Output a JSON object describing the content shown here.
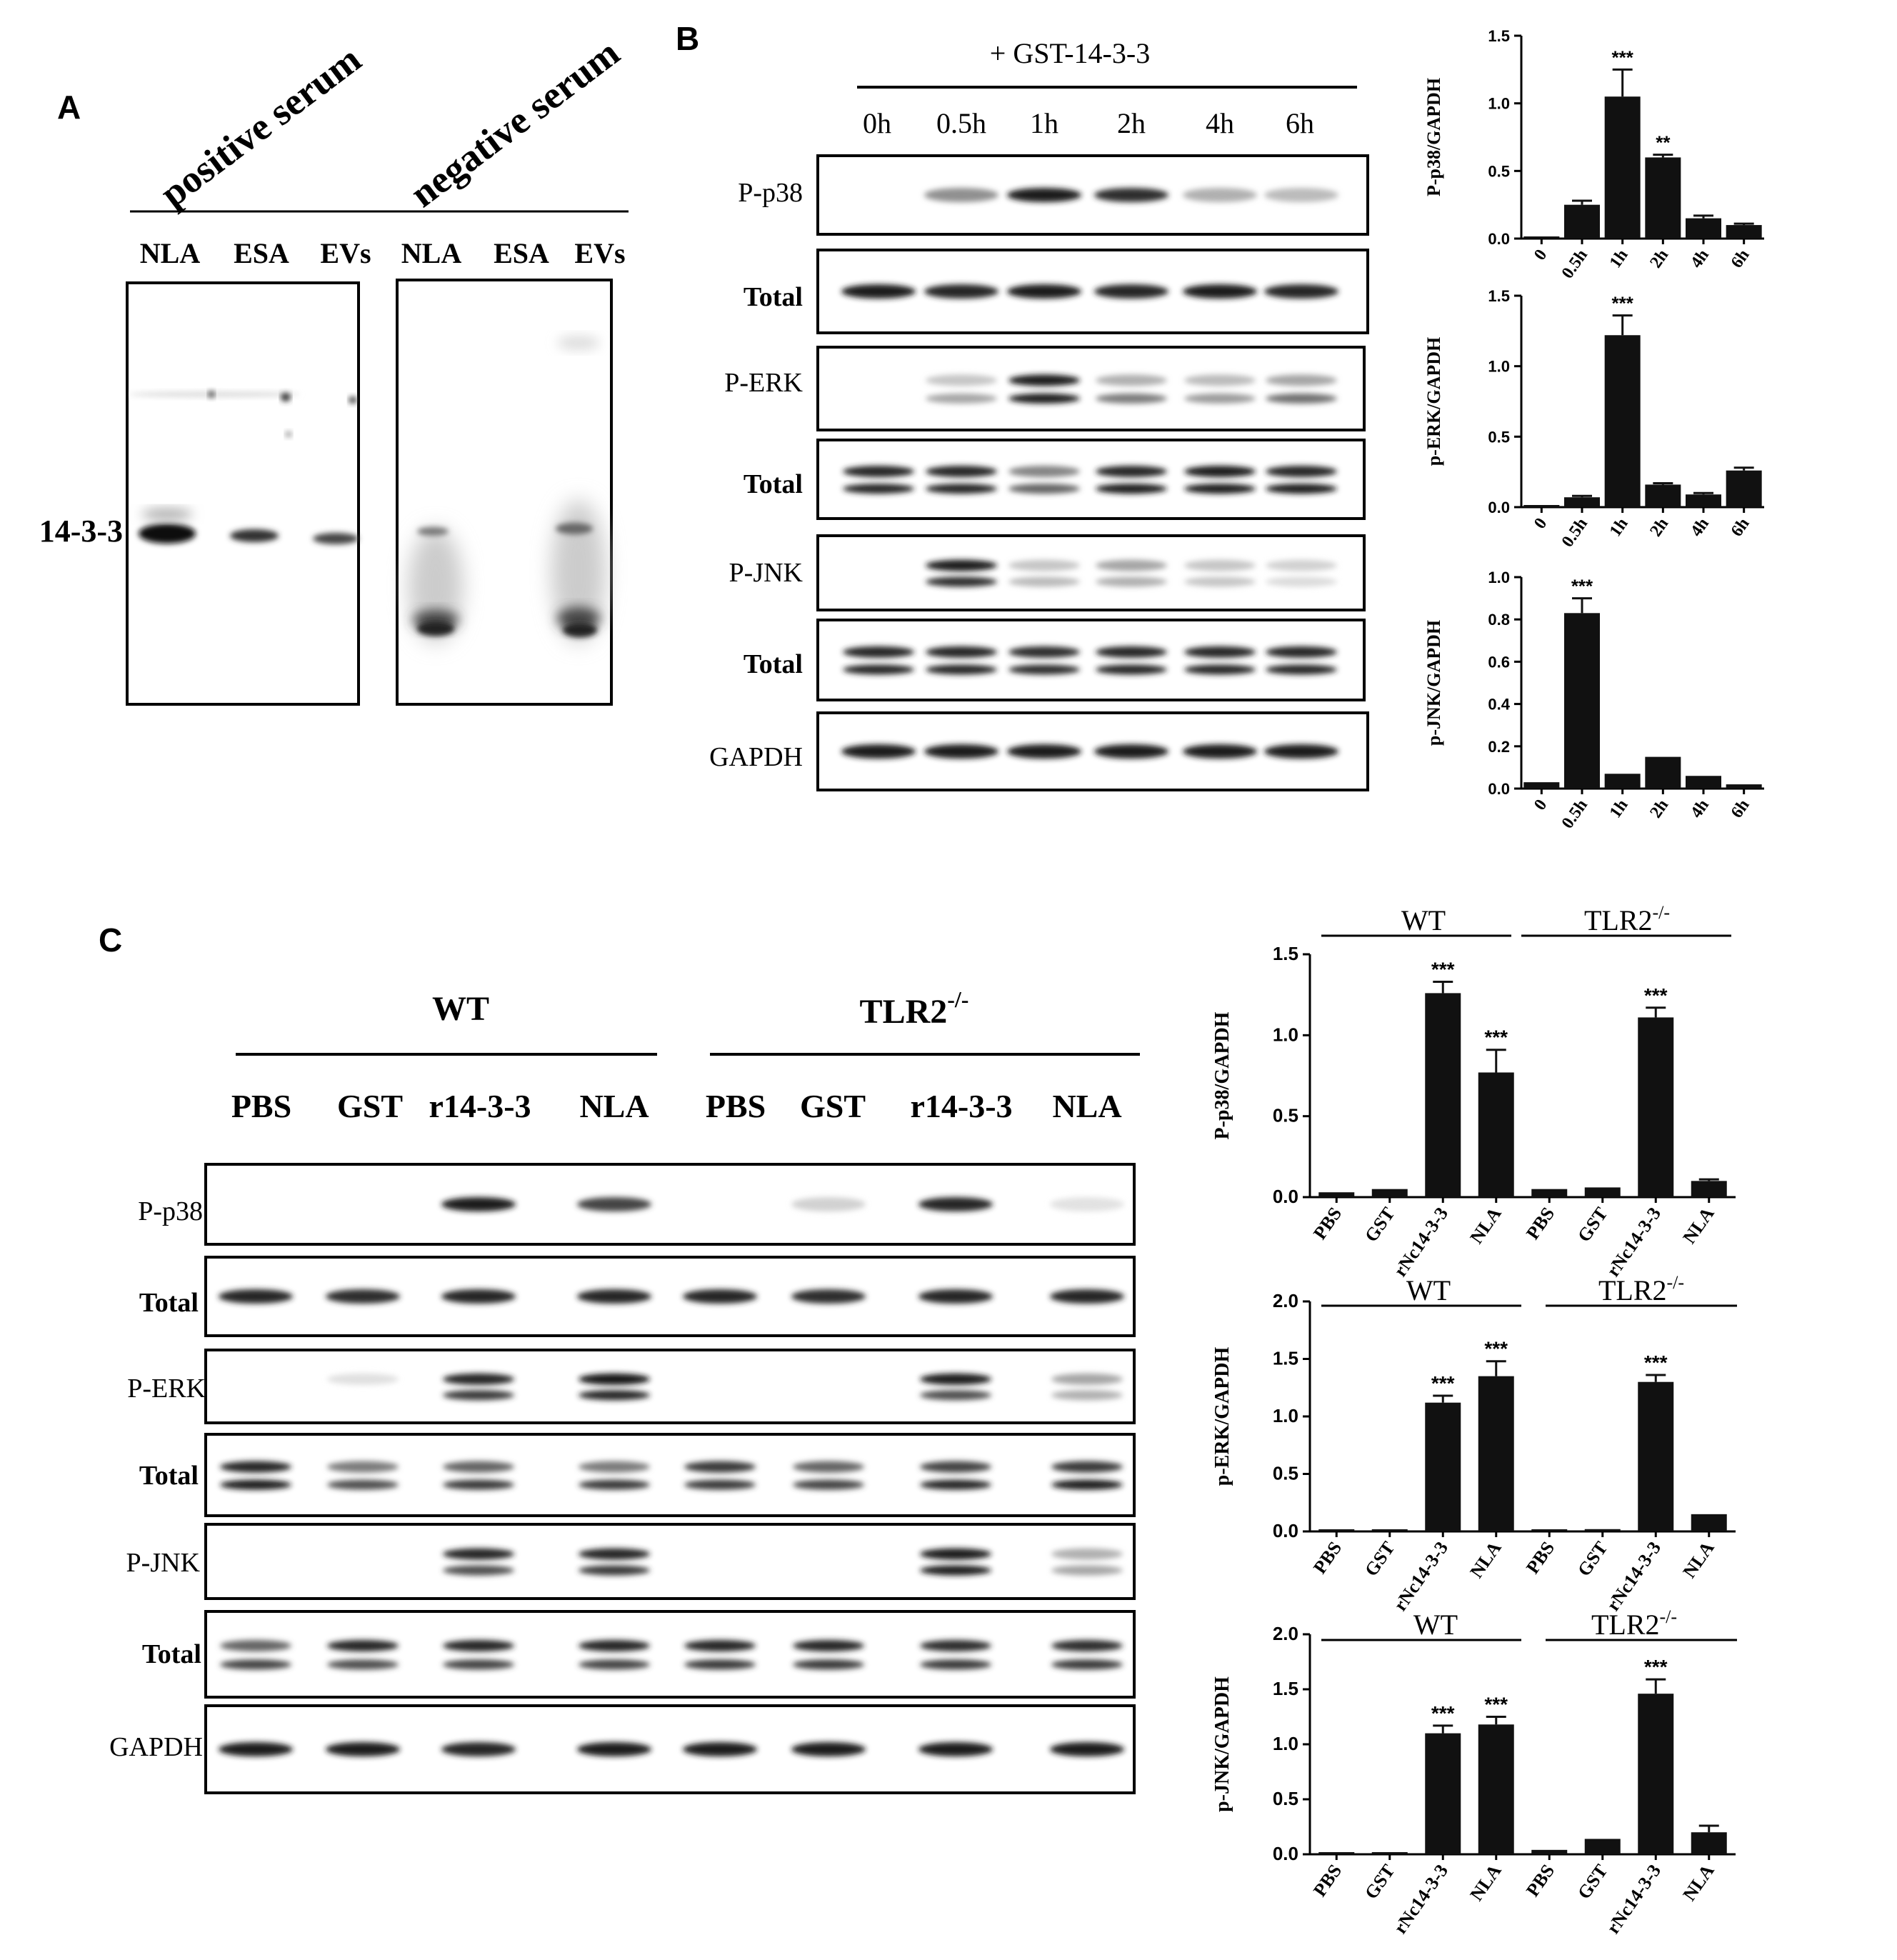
{
  "panel_a": {
    "letter": "A",
    "serum_labels": [
      "positive serum",
      "negative serum"
    ],
    "lanes": [
      "NLA",
      "ESA",
      "EVs",
      "NLA",
      "ESA",
      "EVs"
    ],
    "band_label": "14-3-3"
  },
  "panel_b": {
    "letter": "B",
    "treatment": "+ GST-14-3-3",
    "timepoints": [
      "0h",
      "0.5h",
      "1h",
      "2h",
      "4h",
      "6h"
    ],
    "rows": [
      "P-p38",
      "Total",
      "P-ERK",
      "Total",
      "P-JNK",
      "Total",
      "GAPDH"
    ]
  },
  "panel_c": {
    "letter": "C",
    "groups": [
      "WT",
      "TLR2"
    ],
    "superscript": "-/-",
    "lanes": [
      "PBS",
      "GST",
      "r14-3-3",
      "NLA",
      "PBS",
      "GST",
      "r14-3-3",
      "NLA"
    ],
    "rows": [
      "P-p38",
      "Total",
      "P-ERK",
      "Total",
      "P-JNK",
      "Total",
      "GAPDH"
    ]
  },
  "chart_data": [
    {
      "id": "b1",
      "type": "bar",
      "ylabel": "P-p38/GAPDH",
      "categories": [
        "0",
        "0.5h",
        "1h",
        "2h",
        "4h",
        "6h"
      ],
      "values": [
        0.01,
        0.25,
        1.05,
        0.6,
        0.15,
        0.1
      ],
      "errors": [
        0.0,
        0.03,
        0.2,
        0.02,
        0.02,
        0.01
      ],
      "annotations": [
        "",
        "",
        "***",
        "**",
        "",
        ""
      ],
      "ylim": [
        0,
        1.5
      ],
      "yticks": [
        "0.0",
        "0.5",
        "1.0",
        "1.5"
      ]
    },
    {
      "id": "b2",
      "type": "bar",
      "ylabel": "p-ERK/GAPDH",
      "categories": [
        "0",
        "0.5h",
        "1h",
        "2h",
        "4h",
        "6h"
      ],
      "values": [
        0.0,
        0.07,
        1.22,
        0.16,
        0.09,
        0.26
      ],
      "errors": [
        0.0,
        0.01,
        0.14,
        0.01,
        0.01,
        0.02
      ],
      "annotations": [
        "",
        "",
        "***",
        "",
        "",
        ""
      ],
      "ylim": [
        0,
        1.5
      ],
      "yticks": [
        "0.0",
        "0.5",
        "1.0",
        "1.5"
      ]
    },
    {
      "id": "b3",
      "type": "bar",
      "ylabel": "p-JNK/GAPDH",
      "categories": [
        "0",
        "0.5h",
        "1h",
        "2h",
        "4h",
        "6h"
      ],
      "values": [
        0.03,
        0.83,
        0.07,
        0.15,
        0.06,
        0.02
      ],
      "errors": [
        0.0,
        0.07,
        0.0,
        0.0,
        0.0,
        0.0
      ],
      "annotations": [
        "",
        "***",
        "",
        "",
        "",
        ""
      ],
      "ylim": [
        0,
        1.0
      ],
      "yticks": [
        "0.0",
        "0.2",
        "0.4",
        "0.6",
        "0.8",
        "1.0"
      ]
    },
    {
      "id": "c1",
      "type": "bar",
      "ylabel": "P-p38/GAPDH",
      "groups": [
        "WT",
        "TLR2"
      ],
      "categories": [
        "PBS",
        "GST",
        "rNc14-3-3",
        "NLA",
        "PBS",
        "GST",
        "rNc14-3-3",
        "NLA"
      ],
      "values": [
        0.03,
        0.05,
        1.26,
        0.77,
        0.05,
        0.06,
        1.11,
        0.1
      ],
      "errors": [
        0.0,
        0.0,
        0.07,
        0.14,
        0.0,
        0.0,
        0.06,
        0.01
      ],
      "annotations": [
        "",
        "",
        "***",
        "***",
        "",
        "",
        "***",
        ""
      ],
      "ylim": [
        0,
        1.5
      ],
      "yticks": [
        "0.0",
        "0.5",
        "1.0",
        "1.5"
      ]
    },
    {
      "id": "c2",
      "type": "bar",
      "ylabel": "p-ERK/GAPDH",
      "groups": [
        "WT",
        "TLR2"
      ],
      "categories": [
        "PBS",
        "GST",
        "rNc14-3-3",
        "NLA",
        "PBS",
        "GST",
        "rNc14-3-3",
        "NLA"
      ],
      "values": [
        0.0,
        0.0,
        1.12,
        1.35,
        0.01,
        0.02,
        1.3,
        0.15
      ],
      "errors": [
        0.0,
        0.0,
        0.06,
        0.13,
        0.0,
        0.0,
        0.06,
        0.0
      ],
      "annotations": [
        "",
        "",
        "***",
        "***",
        "",
        "",
        "***",
        ""
      ],
      "ylim": [
        0,
        2.0
      ],
      "yticks": [
        "0.0",
        "0.5",
        "1.0",
        "1.5",
        "2.0"
      ]
    },
    {
      "id": "c3",
      "type": "bar",
      "ylabel": "p-JNK/GAPDH",
      "groups": [
        "WT",
        "TLR2"
      ],
      "categories": [
        "PBS",
        "GST",
        "rNc14-3-3",
        "NLA",
        "PBS",
        "GST",
        "rNc14-3-3",
        "NLA"
      ],
      "values": [
        0.0,
        0.0,
        1.1,
        1.18,
        0.04,
        0.14,
        1.46,
        0.2
      ],
      "errors": [
        0.0,
        0.0,
        0.07,
        0.07,
        0.0,
        0.0,
        0.13,
        0.06
      ],
      "annotations": [
        "",
        "",
        "***",
        "***",
        "",
        "",
        "***",
        ""
      ],
      "ylim": [
        0,
        2.0
      ],
      "yticks": [
        "0.0",
        "0.5",
        "1.0",
        "1.5",
        "2.0"
      ]
    }
  ]
}
